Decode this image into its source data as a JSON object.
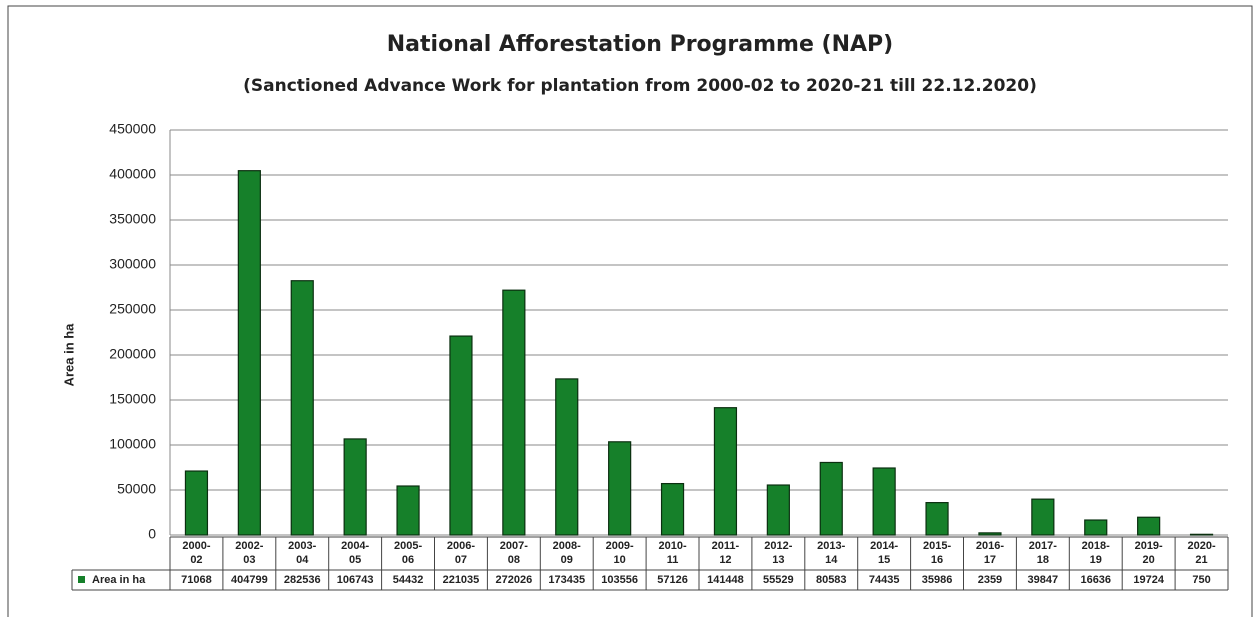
{
  "chart_data": {
    "type": "bar",
    "title": "National Afforestation Programme (NAP)",
    "subtitle": "(Sanctioned Advance Work for plantation from 2000-02 to 2020-21 till 22.12.2020)",
    "y_label": "Area in ha",
    "categories": [
      "2000-02",
      "2002-03",
      "2003-04",
      "2004-05",
      "2005-06",
      "2006-07",
      "2007-08",
      "2008-09",
      "2009-10",
      "2010-11",
      "2011-12",
      "2012-13",
      "2013-14",
      "2014-15",
      "2015-16",
      "2016-17",
      "2017-18",
      "2018-19",
      "2019-20",
      "2020-21"
    ],
    "series": [
      {
        "name": "Area in ha",
        "color": "#16802a",
        "values": [
          71068,
          404799,
          282536,
          106743,
          54432,
          221035,
          272026,
          173435,
          103556,
          57126,
          141448,
          55529,
          80583,
          74435,
          35986,
          2359,
          39847,
          16636,
          19724,
          750
        ]
      }
    ],
    "ylim": [
      0,
      450000
    ],
    "yticks": [
      0,
      50000,
      100000,
      150000,
      200000,
      250000,
      300000,
      350000,
      400000,
      450000
    ],
    "grid": true
  }
}
